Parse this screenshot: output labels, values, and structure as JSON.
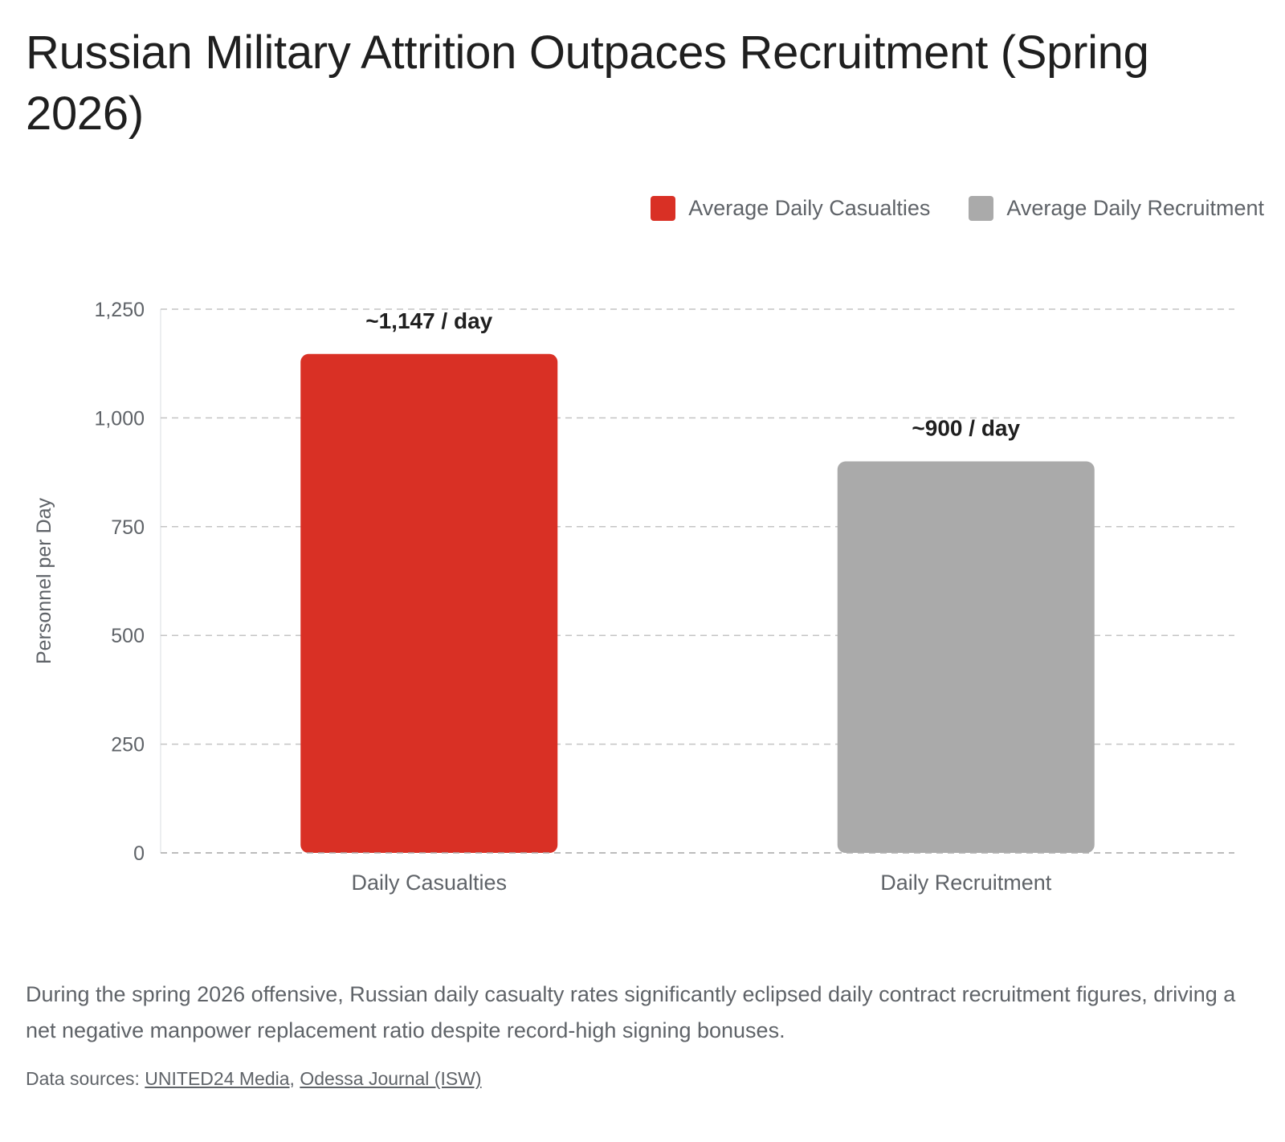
{
  "title": "Russian Military Attrition Outpaces Recruitment (Spring 2026)",
  "legend": [
    {
      "label": "Average Daily Casualties",
      "color": "#d93025"
    },
    {
      "label": "Average Daily Recruitment",
      "color": "#aaaaaa"
    }
  ],
  "chart_data": {
    "type": "bar",
    "categories": [
      "Daily Casualties",
      "Daily Recruitment"
    ],
    "values": [
      1147,
      900
    ],
    "data_labels": [
      "~1,147 / day",
      "~900 / day"
    ],
    "colors": [
      "#d93025",
      "#aaaaaa"
    ],
    "ylabel": "Personnel per Day",
    "xlabel": "",
    "ylim": [
      0,
      1250
    ],
    "yticks": [
      0,
      250,
      500,
      750,
      1000,
      1250
    ],
    "ytick_labels": [
      "0",
      "250",
      "500",
      "750",
      "1,000",
      "1,250"
    ],
    "grid": true,
    "legend_position": "top-right"
  },
  "description": "During the spring 2026 offensive, Russian daily casualty rates significantly eclipsed daily contract recruitment figures, driving a net negative manpower replacement ratio despite record-high signing bonuses.",
  "sources": {
    "prefix": "Data sources:",
    "separator": ",",
    "links": [
      "UNITED24 Media",
      "Odessa Journal (ISW)"
    ]
  }
}
